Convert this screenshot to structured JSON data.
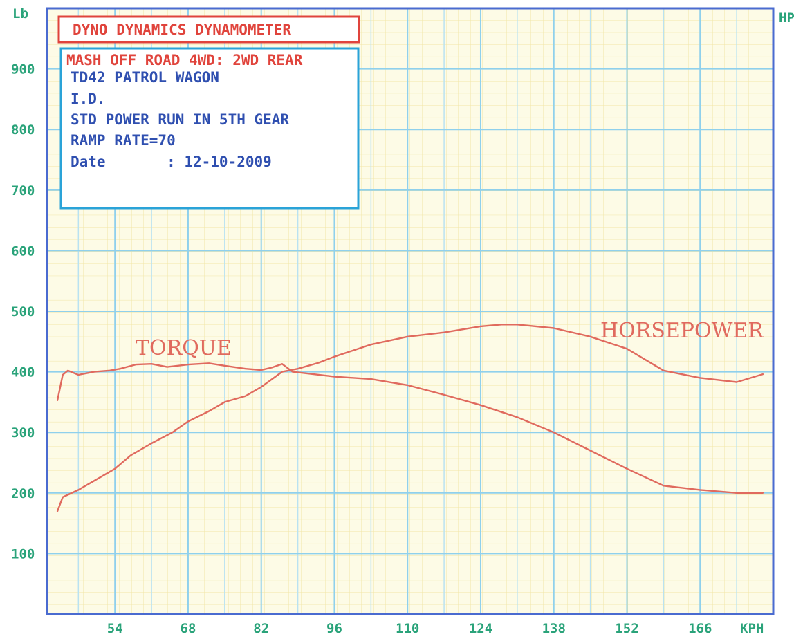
{
  "chart_data": {
    "type": "line",
    "header_box": "DYNO DYNAMICS DYNAMOMETER",
    "info_box": {
      "title": "MASH OFF ROAD 4WD: 2WD REAR",
      "lines": [
        "TD42 PATROL WAGON",
        "I.D.",
        "STD POWER RUN IN 5TH GEAR",
        "RAMP RATE=70",
        "Date       : 12-10-2009"
      ]
    },
    "y_left_label": "Lb",
    "y_right_label": "HP",
    "x_unit_label": "KPH",
    "x_ticks": [
      "54",
      "68",
      "82",
      "96",
      "110",
      "124",
      "138",
      "152",
      "166"
    ],
    "y_ticks": [
      "100",
      "200",
      "300",
      "400",
      "500",
      "600",
      "700",
      "800",
      "900"
    ],
    "x_range": [
      41,
      180
    ],
    "y_range": [
      0,
      1000
    ],
    "grid": true,
    "series": [
      {
        "name": "TORQUE",
        "color": "#e06a5e",
        "x": [
          43,
          44,
          45,
          47,
          50,
          53,
          55,
          58,
          61,
          64,
          68,
          72,
          75,
          79,
          82,
          84,
          86,
          88,
          92,
          96,
          103,
          110,
          117,
          124,
          131,
          138,
          145,
          152,
          159,
          166,
          173,
          178
        ],
        "y": [
          353,
          395,
          402,
          395,
          400,
          402,
          405,
          412,
          413,
          408,
          412,
          414,
          410,
          405,
          403,
          407,
          413,
          400,
          396,
          392,
          388,
          378,
          362,
          345,
          325,
          300,
          270,
          240,
          212,
          205,
          200,
          200
        ]
      },
      {
        "name": "HORSEPOWER",
        "color": "#e06a5e",
        "x": [
          43,
          44,
          47,
          50,
          54,
          57,
          61,
          65,
          68,
          72,
          75,
          79,
          82,
          86,
          89,
          93,
          96,
          103,
          110,
          117,
          124,
          128,
          131,
          138,
          145,
          152,
          159,
          166,
          173,
          178
        ],
        "y": [
          170,
          193,
          205,
          220,
          240,
          262,
          282,
          300,
          318,
          335,
          350,
          360,
          375,
          400,
          405,
          415,
          425,
          445,
          458,
          465,
          475,
          478,
          478,
          472,
          458,
          438,
          402,
          390,
          383,
          396
        ]
      }
    ]
  }
}
